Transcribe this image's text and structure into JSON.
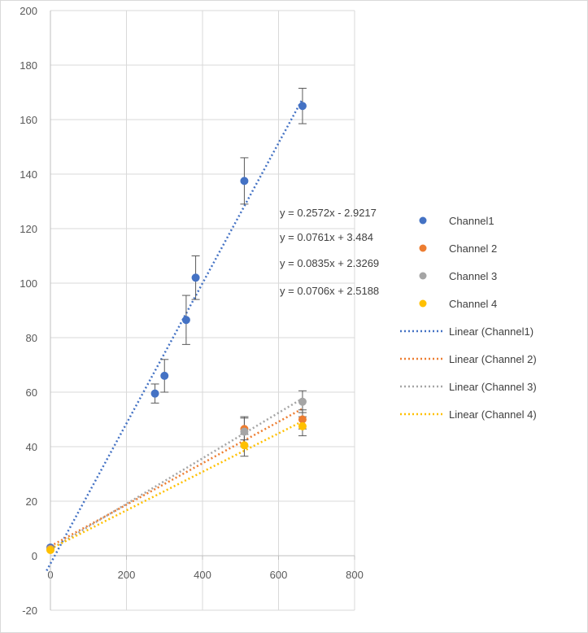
{
  "chart_data": {
    "type": "scatter",
    "title": "",
    "xlabel": "",
    "ylabel": "",
    "xlim": [
      0,
      800
    ],
    "ylim": [
      -20,
      200
    ],
    "x_ticks": [
      "0",
      "200",
      "400",
      "600",
      "800"
    ],
    "y_ticks": [
      "-20",
      "0",
      "20",
      "40",
      "60",
      "80",
      "100",
      "120",
      "140",
      "160",
      "180",
      "200"
    ],
    "grid": true,
    "legend_position": "right",
    "series": [
      {
        "name": "Channel1",
        "color": "#4472c4",
        "points": [
          {
            "x": 0,
            "y": 3,
            "err": 0
          },
          {
            "x": 275,
            "y": 59.5,
            "err": 3.5
          },
          {
            "x": 300,
            "y": 66,
            "err": 6
          },
          {
            "x": 357,
            "y": 86.5,
            "err": 9
          },
          {
            "x": 382,
            "y": 102,
            "err": 8
          },
          {
            "x": 510,
            "y": 137.5,
            "err": 8.5
          },
          {
            "x": 663,
            "y": 165,
            "err": 6.5
          }
        ],
        "trend": {
          "slope": 0.2572,
          "intercept": -2.9217,
          "label": "Linear (Channel1)",
          "equation": "y = 0.2572x - 2.9217"
        }
      },
      {
        "name": "Channel 2",
        "color": "#ed7d31",
        "points": [
          {
            "x": 0,
            "y": 2.5,
            "err": 0
          },
          {
            "x": 510,
            "y": 46.5,
            "err": 4
          },
          {
            "x": 663,
            "y": 50,
            "err": 3.5
          }
        ],
        "trend": {
          "slope": 0.0761,
          "intercept": 3.484,
          "label": "Linear (Channel 2)",
          "equation": "y = 0.0761x + 3.484"
        }
      },
      {
        "name": "Channel 3",
        "color": "#a5a5a5",
        "points": [
          {
            "x": 0,
            "y": 2.3,
            "err": 0
          },
          {
            "x": 510,
            "y": 45.5,
            "err": 5.5
          },
          {
            "x": 663,
            "y": 56.5,
            "err": 4
          }
        ],
        "trend": {
          "slope": 0.0835,
          "intercept": 2.3269,
          "label": "Linear (Channel 3)",
          "equation": "y = 0.0835x + 2.3269"
        }
      },
      {
        "name": "Channel 4",
        "color": "#ffc000",
        "points": [
          {
            "x": 0,
            "y": 2.1,
            "err": 0
          },
          {
            "x": 510,
            "y": 40.5,
            "err": 4
          },
          {
            "x": 663,
            "y": 47.5,
            "err": 3.5
          }
        ],
        "trend": {
          "slope": 0.0706,
          "intercept": 2.5188,
          "label": "Linear (Channel 4)",
          "equation": "y = 0.0706x + 2.5188"
        }
      }
    ]
  }
}
